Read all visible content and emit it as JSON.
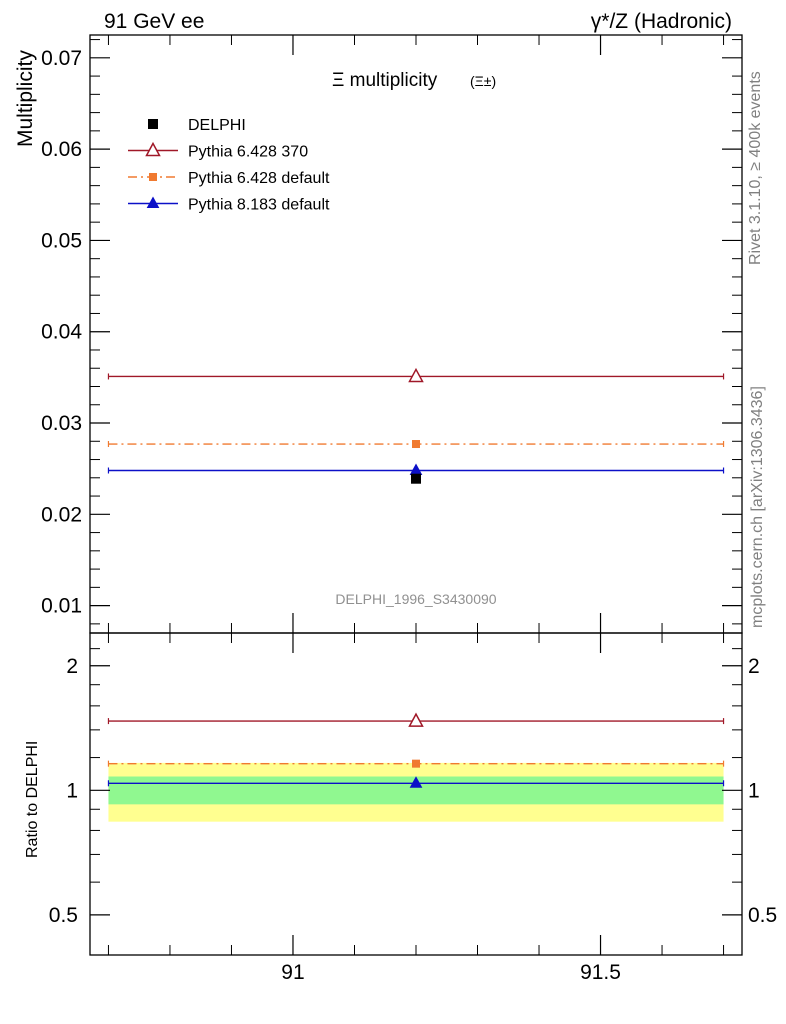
{
  "header": {
    "left": "91 GeV ee",
    "right": "γ*/Z (Hadronic)"
  },
  "side_labels": {
    "rivet": "Rivet 3.1.10, ≥ 400k events",
    "mcplots": "mcplots.cern.ch [arXiv:1306.3436]"
  },
  "chart_data": [
    {
      "type": "scatter",
      "title": "Ξ multiplicity",
      "title_suffix": "(Ξ±)",
      "xlabel": "",
      "ylabel": "Multiplicity",
      "xlim": [
        90.67,
        91.73
      ],
      "ylim": [
        0.007,
        0.0725
      ],
      "y_ticks": [
        "0.01",
        "0.02",
        "0.03",
        "0.04",
        "0.05",
        "0.06",
        "0.07"
      ],
      "analysis_id": "DELPHI_1996_S3430090",
      "data_point": {
        "name": "DELPHI",
        "x": 91.2,
        "y": 0.0239,
        "color": "#000000"
      },
      "series": [
        {
          "name": "Pythia 6.428 370",
          "x": 91.2,
          "xmin": 90.7,
          "xmax": 91.7,
          "y": 0.0351,
          "color": "#a01828",
          "marker": "open-triangle",
          "line": "solid"
        },
        {
          "name": "Pythia 6.428 default",
          "x": 91.2,
          "xmin": 90.7,
          "xmax": 91.7,
          "y": 0.0277,
          "color": "#f07a30",
          "marker": "square",
          "line": "dashdot"
        },
        {
          "name": "Pythia 8.183 default",
          "x": 91.2,
          "xmin": 90.7,
          "xmax": 91.7,
          "y": 0.0248,
          "color": "#0c10c8",
          "marker": "filled-triangle",
          "line": "solid"
        }
      ]
    },
    {
      "type": "scatter",
      "title": "",
      "xlabel": "",
      "ylabel": "Ratio to DELPHI",
      "xlim": [
        90.67,
        91.73
      ],
      "ylim": [
        0.4,
        2.4
      ],
      "y_scale": "log",
      "y_ticks": [
        "0.5",
        "1",
        "2"
      ],
      "y_tick_values": [
        0.5,
        1,
        2
      ],
      "x_ticks": [
        "91",
        "91.5"
      ],
      "x_tick_values": [
        91,
        91.5
      ],
      "band_stat": [
        0.925,
        1.08
      ],
      "band_total": [
        0.84,
        1.165
      ],
      "band_stat_color": "#90f890",
      "band_total_color": "#ffff90",
      "series": [
        {
          "name": "Pythia 6.428 370",
          "x": 91.2,
          "y": 1.47,
          "color": "#a01828",
          "marker": "open-triangle",
          "line": "solid"
        },
        {
          "name": "Pythia 6.428 default",
          "x": 91.2,
          "y": 1.16,
          "color": "#f07a30",
          "marker": "square",
          "line": "dashdot"
        },
        {
          "name": "Pythia 8.183 default",
          "x": 91.2,
          "y": 1.04,
          "color": "#0c10c8",
          "marker": "filled-triangle",
          "line": "solid"
        }
      ]
    }
  ]
}
